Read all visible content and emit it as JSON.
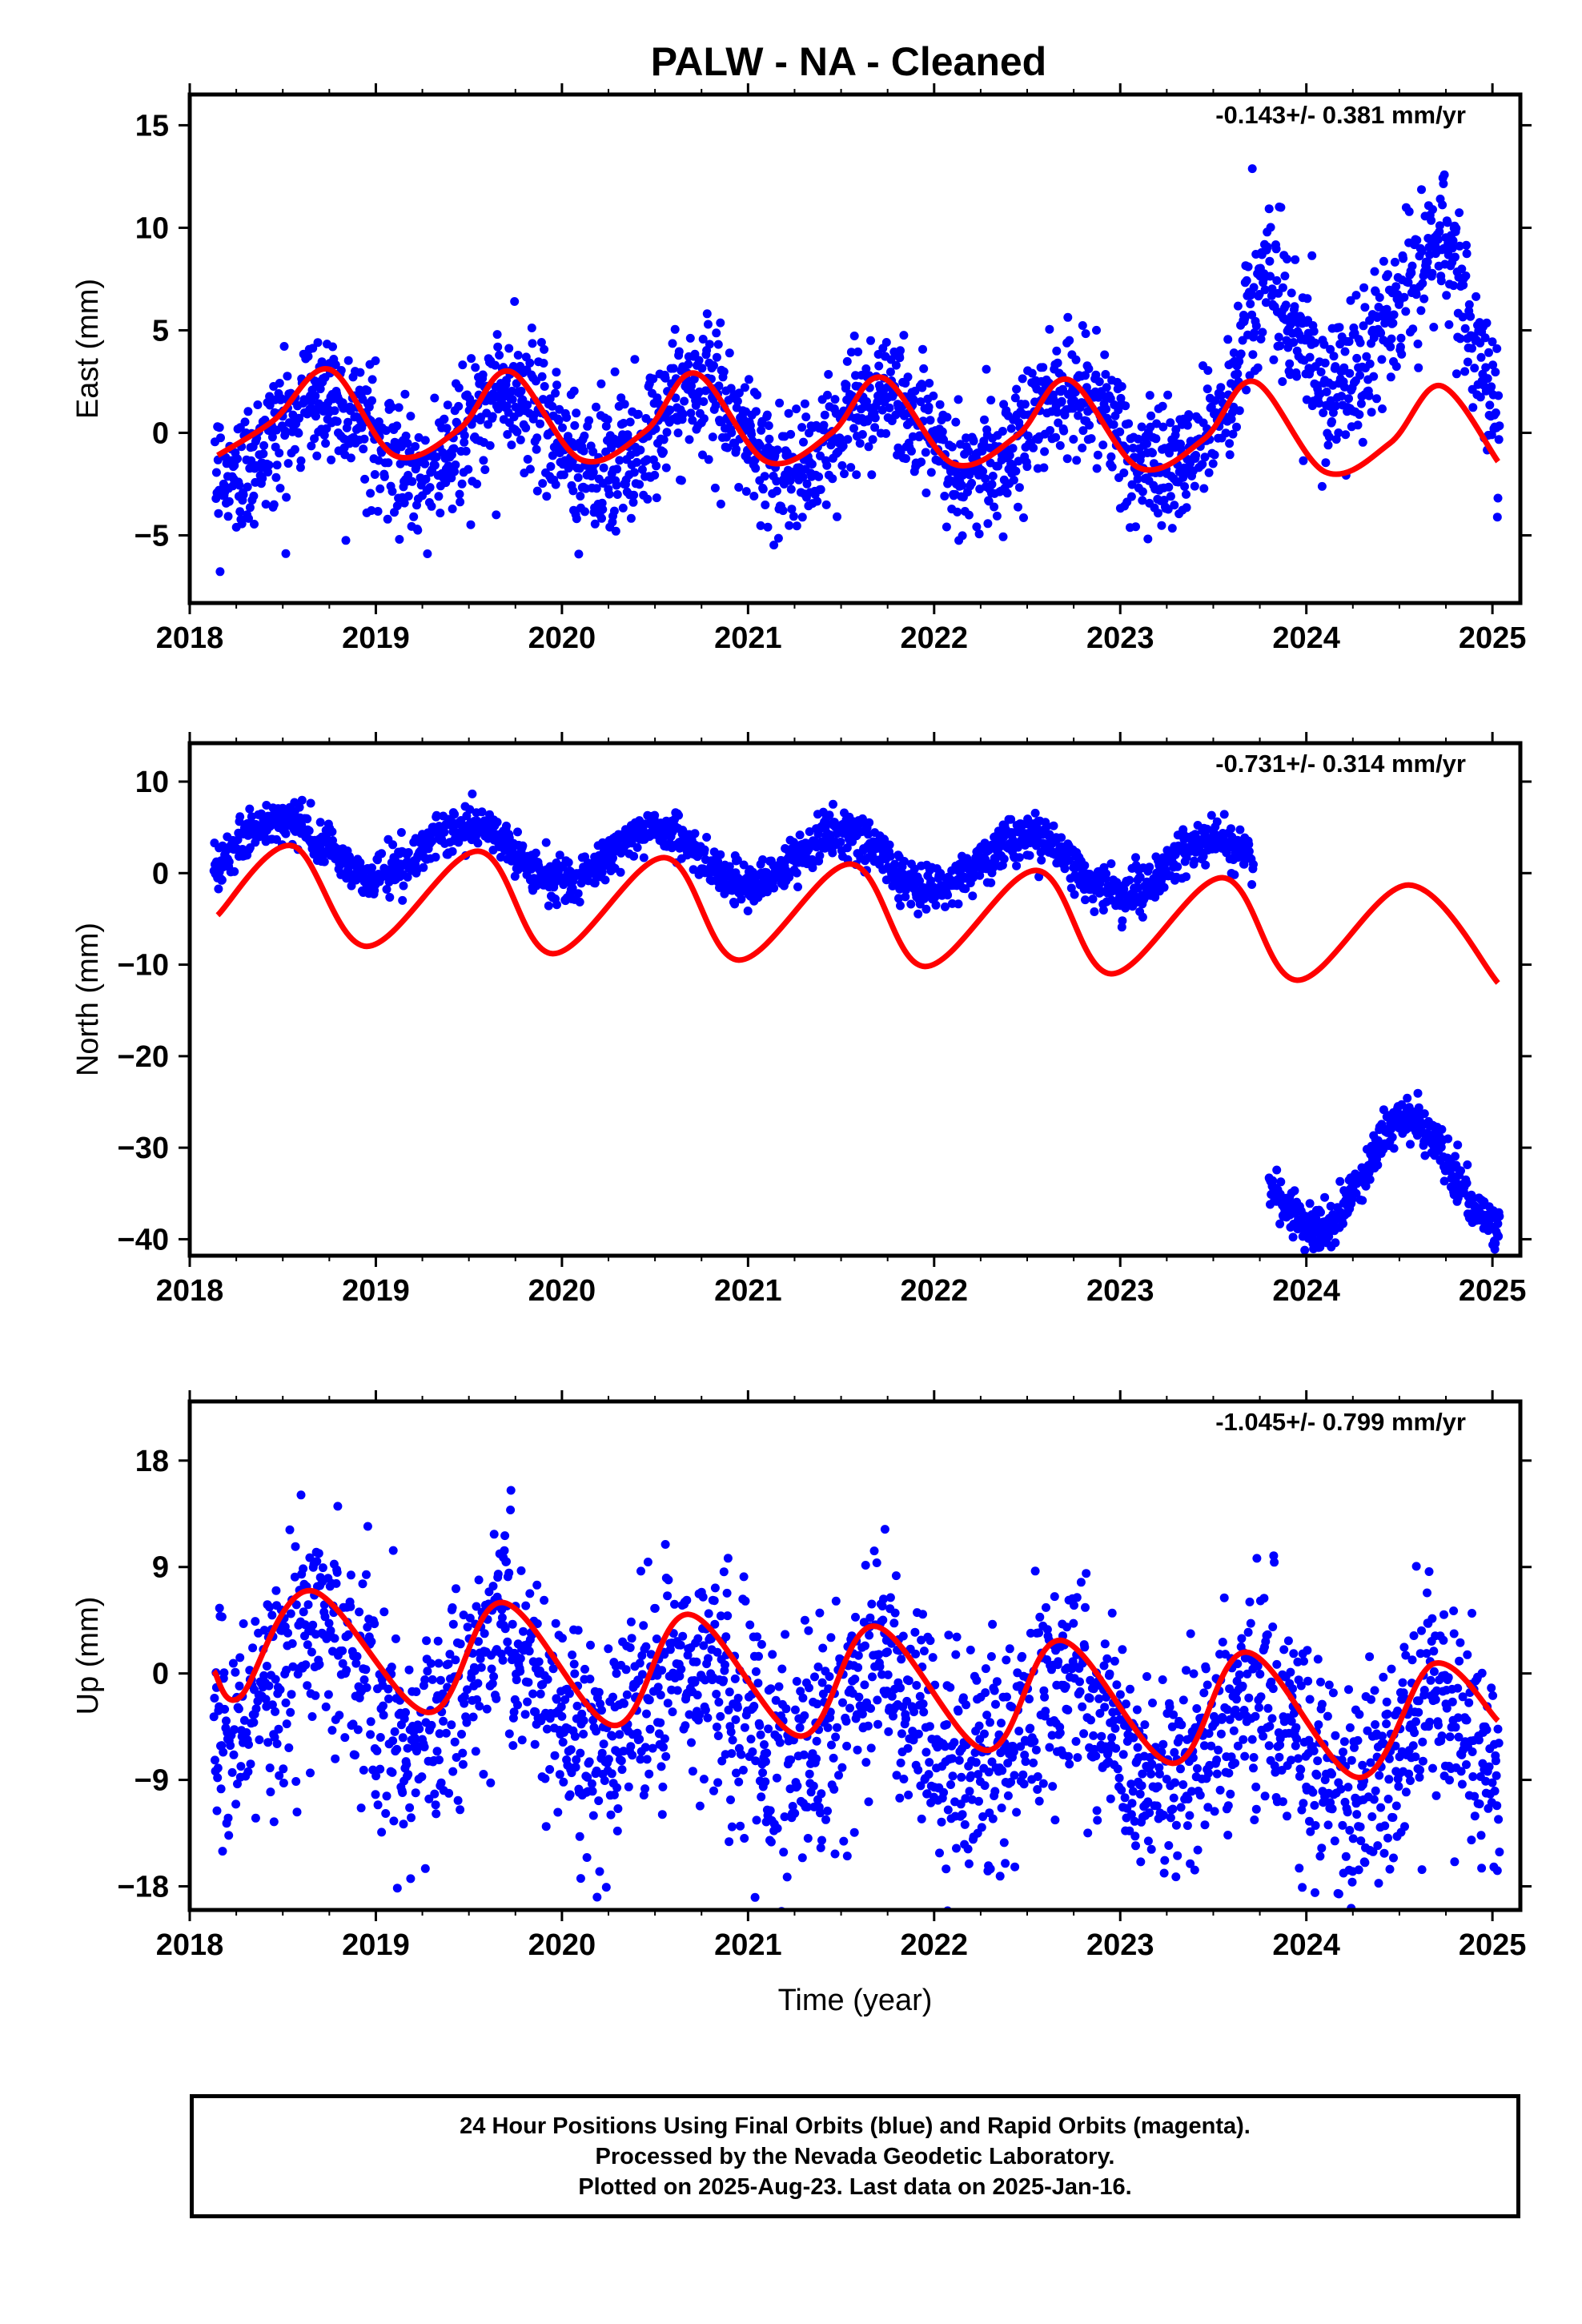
{
  "title": "PALW  - NA - Cleaned",
  "footer": {
    "line1": "24 Hour Positions Using Final Orbits (blue) and Rapid Orbits (magenta).",
    "line2": "Processed by the Nevada Geodetic Laboratory.",
    "line3": "Plotted on 2025-Aug-23. Last data on 2025-Jan-16."
  },
  "colors": {
    "observations": "#0000ff",
    "model": "#ff0000",
    "frame": "#000000"
  },
  "chart_data": [
    {
      "type": "scatter",
      "ylabel": "East (mm)",
      "xlabel": "",
      "xlim": [
        2018,
        2025.15
      ],
      "ylim": [
        -8.3,
        16.5
      ],
      "xticks": [
        2018,
        2019,
        2020,
        2021,
        2022,
        2023,
        2024,
        2025
      ],
      "yticks": [
        -5,
        0,
        5,
        10,
        15
      ],
      "yticklabels": [
        "−5",
        "0",
        "5",
        "10",
        "15"
      ],
      "annotation": "-0.143+/- 0.381 mm/yr",
      "observations": {
        "start": 2018.13,
        "end": 2025.04,
        "offset": 0.0,
        "trend": 0.0,
        "amplitude": 2.0,
        "peak": 0.72,
        "noise": 1.6,
        "extra_segments": [
          {
            "x0": 2023.55,
            "x1": 2023.75,
            "rise_from": 0.0,
            "rise_to": 8.0
          },
          {
            "x0": 2023.75,
            "x1": 2024.15,
            "rise_from": 8.0,
            "rise_to": 1.5
          },
          {
            "x0": 2024.15,
            "x1": 2024.75,
            "rise_from": 1.5,
            "rise_to": 10.0
          },
          {
            "x0": 2024.75,
            "x1": 2025.04,
            "rise_from": 10.0,
            "rise_to": 0.0
          }
        ]
      },
      "model": {
        "x": [
          2018.15,
          2018.45,
          2018.75,
          2019.1,
          2019.45,
          2019.72,
          2020.1,
          2020.45,
          2020.72,
          2021.1,
          2021.45,
          2021.72,
          2022.1,
          2022.45,
          2022.72,
          2023.1,
          2023.45,
          2023.72,
          2024.1,
          2024.45,
          2024.72,
          2025.03
        ],
        "y": [
          -1.1,
          0.6,
          3.1,
          -1.1,
          0.2,
          3.0,
          -1.3,
          0.1,
          2.9,
          -1.4,
          0.0,
          2.7,
          -1.5,
          -0.1,
          2.6,
          -1.7,
          -0.3,
          2.5,
          -1.9,
          -0.5,
          2.3,
          -1.4
        ]
      }
    },
    {
      "type": "scatter",
      "ylabel": "North (mm)",
      "xlabel": "",
      "xlim": [
        2018,
        2025.15
      ],
      "ylim": [
        -41.8,
        14.2
      ],
      "xticks": [
        2018,
        2019,
        2020,
        2021,
        2022,
        2023,
        2024,
        2025
      ],
      "yticks": [
        -40,
        -30,
        -20,
        -10,
        0,
        10
      ],
      "yticklabels": [
        "−40",
        "−30",
        "−20",
        "−10",
        "0",
        "10"
      ],
      "annotation": "-0.731+/- 0.314 mm/yr",
      "observations": {
        "segments": [
          {
            "start": 2018.13,
            "end": 2023.72,
            "offset": 3.0,
            "trend": -0.45,
            "amplitude": 3.0,
            "peak": 0.5,
            "noise": 1.2
          },
          {
            "start": 2023.8,
            "end": 2025.04,
            "offset": -33.0,
            "trend": 0.0,
            "amplitude": 6.0,
            "peak": 0.55,
            "noise": 1.3
          }
        ]
      },
      "model": {
        "x": [
          2018.15,
          2018.55,
          2018.95,
          2019.55,
          2019.95,
          2020.55,
          2020.95,
          2021.55,
          2021.95,
          2022.55,
          2022.95,
          2023.55,
          2023.95,
          2024.55,
          2025.03
        ],
        "y": [
          -4.6,
          3.0,
          -8.0,
          2.4,
          -8.8,
          1.7,
          -9.5,
          1.0,
          -10.2,
          0.3,
          -11.0,
          -0.5,
          -11.7,
          -1.3,
          -12.0
        ]
      }
    },
    {
      "type": "scatter",
      "ylabel": "Up (mm)",
      "xlabel": "Time (year)",
      "xlim": [
        2018,
        2025.15
      ],
      "ylim": [
        -20,
        23
      ],
      "xticks": [
        2018,
        2019,
        2020,
        2021,
        2022,
        2023,
        2024,
        2025
      ],
      "yticks": [
        -18,
        -9,
        0,
        9,
        18
      ],
      "yticklabels": [
        "−18",
        "−9",
        "0",
        "9",
        "18"
      ],
      "annotation": "-1.045+/- 0.799 mm/yr",
      "observations": {
        "start": 2018.13,
        "end": 2025.04,
        "offset": 0.0,
        "trend": -1.0,
        "amplitude": 4.5,
        "peak": 0.7,
        "noise": 4.6
      },
      "model": {
        "x": [
          2018.13,
          2018.27,
          2018.65,
          2019.28,
          2019.68,
          2020.28,
          2020.68,
          2021.28,
          2021.68,
          2022.28,
          2022.68,
          2023.28,
          2023.68,
          2024.28,
          2024.68,
          2025.03
        ],
        "y": [
          0.2,
          -2.0,
          7.0,
          -3.3,
          6.0,
          -4.4,
          5.0,
          -5.3,
          4.0,
          -6.5,
          2.8,
          -7.6,
          1.8,
          -8.8,
          0.8,
          -4.0
        ]
      }
    }
  ]
}
